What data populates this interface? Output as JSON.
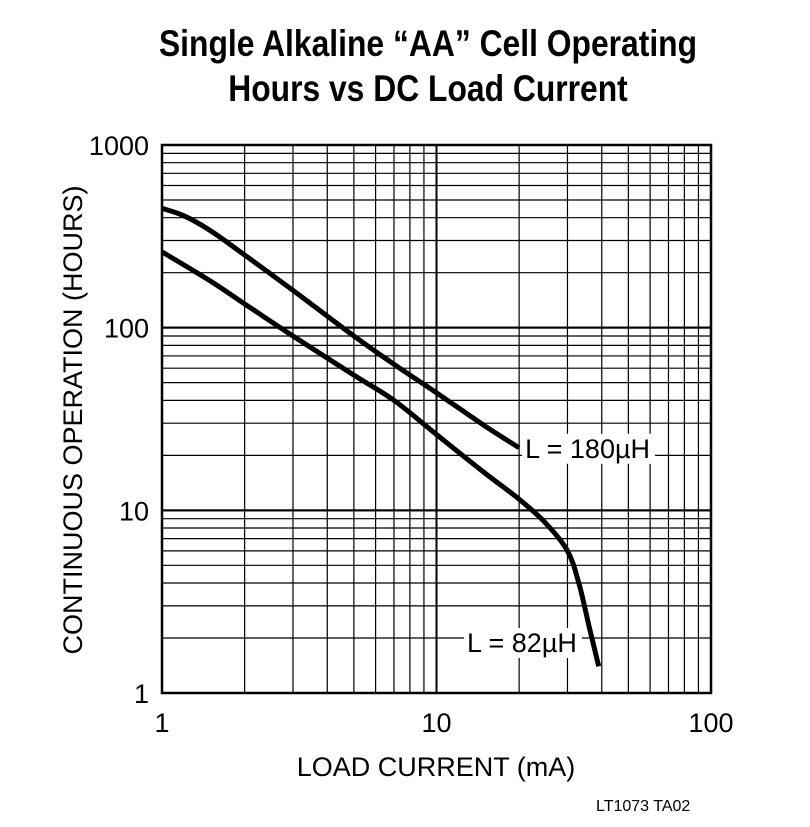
{
  "title_line1": "Single Alkaline “AA” Cell Operating",
  "title_line2": "Hours vs DC Load Current",
  "figure_code": "LT1073 TA02",
  "chart_data": {
    "type": "line",
    "title": "Single Alkaline “AA” Cell Operating Hours vs DC Load Current",
    "xlabel": "LOAD CURRENT (mA)",
    "ylabel": "CONTINUOUS OPERATION (HOURS)",
    "xscale": "log",
    "yscale": "log",
    "xlim": [
      1,
      100
    ],
    "ylim": [
      1,
      1000
    ],
    "xticks": [
      "1",
      "10",
      "100"
    ],
    "yticks": [
      "1",
      "10",
      "100",
      "1000"
    ],
    "grid": true,
    "series": [
      {
        "name": "L = 180µH",
        "x": [
          1,
          1.2,
          1.5,
          2,
          3,
          5,
          7,
          10,
          15,
          20
        ],
        "y": [
          450,
          410,
          340,
          250,
          160,
          90,
          63,
          44,
          29,
          22
        ]
      },
      {
        "name": "L = 82µH",
        "x": [
          1,
          1.5,
          2,
          3,
          5,
          7,
          10,
          15,
          20,
          25,
          30,
          33,
          36,
          39
        ],
        "y": [
          260,
          180,
          135,
          90,
          55,
          40,
          26,
          16,
          11.5,
          8.5,
          6,
          4,
          2.3,
          1.4
        ]
      }
    ]
  }
}
